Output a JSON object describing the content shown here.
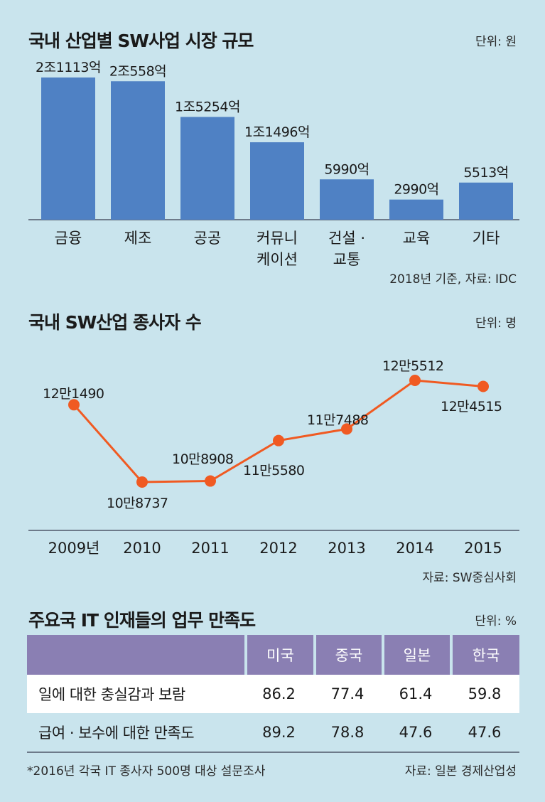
{
  "chart_data": [
    {
      "type": "bar",
      "title": "국내 산업별 SW사업 시장 규모",
      "unit": "단위: 원",
      "categories": [
        [
          "금융"
        ],
        [
          "제조"
        ],
        [
          "공공"
        ],
        [
          "커뮤니",
          "케이션"
        ],
        [
          "건설 ·",
          "교통"
        ],
        [
          "교육"
        ],
        [
          "기타"
        ]
      ],
      "values": [
        21113,
        20558,
        15254,
        11496,
        5990,
        2990,
        5513
      ],
      "value_labels": [
        "2조1113억",
        "2조558억",
        "1조5254억",
        "1조1496억",
        "5990억",
        "2990억",
        "5513억"
      ],
      "source": "2018년 기준, 자료: IDC",
      "color": "#4f81c4"
    },
    {
      "type": "line",
      "title": "국내 SW산업 종사자 수",
      "unit": "단위: 명",
      "categories": [
        "2009년",
        "2010",
        "2011",
        "2012",
        "2013",
        "2014",
        "2015"
      ],
      "values": [
        121490,
        108737,
        108908,
        115580,
        117488,
        125512,
        124515
      ],
      "value_labels": [
        "12만1490",
        "10만8737",
        "10만8908",
        "11만5580",
        "11만7488",
        "12만5512",
        "12만4515"
      ],
      "source": "자료: SW중심사회",
      "color": "#f05a22"
    },
    {
      "type": "table",
      "title": "주요국 IT 인재들의 업무 만족도",
      "unit": "단위: %",
      "columns": [
        "미국",
        "중국",
        "일본",
        "한국"
      ],
      "rows": [
        {
          "label": "일에 대한 충실감과 보람",
          "values": [
            "86.2",
            "77.4",
            "61.4",
            "59.8"
          ]
        },
        {
          "label": "급여 · 보수에 대한 만족도",
          "values": [
            "89.2",
            "78.8",
            "47.6",
            "47.6"
          ]
        }
      ],
      "footnote": "*2016년 각국 IT 종사자 500명 대상 설문조사",
      "source": "자료: 일본 경제산업성",
      "header_color": "#8a7fb3"
    }
  ]
}
